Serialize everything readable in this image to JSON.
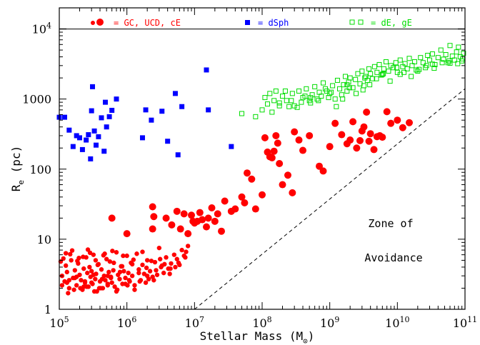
{
  "chart_data": {
    "type": "scatter",
    "x_scale": "log",
    "y_scale": "log",
    "xlim": [
      100000,
      100000000000
    ],
    "ylim": [
      1,
      20000
    ],
    "xlabel_main": "Stellar Mass (M",
    "xlabel_sub": "⊙",
    "xlabel_end": ")",
    "ylabel_main": "R",
    "ylabel_sub": "e",
    "ylabel_end": " (pc)",
    "x_ticks": [
      {
        "value": 100000,
        "base": "10",
        "exp": "5"
      },
      {
        "value": 1000000,
        "base": "10",
        "exp": "6"
      },
      {
        "value": 10000000,
        "base": "10",
        "exp": "7"
      },
      {
        "value": 100000000,
        "base": "10",
        "exp": "8"
      },
      {
        "value": 1000000000,
        "base": "10",
        "exp": "9"
      },
      {
        "value": 10000000000,
        "base": "10",
        "exp": "10"
      },
      {
        "value": 100000000000,
        "base": "10",
        "exp": "11"
      }
    ],
    "y_ticks": [
      {
        "value": 1,
        "label": "1"
      },
      {
        "value": 10,
        "label": "10"
      },
      {
        "value": 100,
        "label": "100"
      },
      {
        "value": 1000,
        "label": "1000"
      },
      {
        "value": 10000,
        "base": "10",
        "exp": "4"
      }
    ],
    "hline": {
      "y": 10000,
      "color": "#555555"
    },
    "avoidance_line": {
      "x": [
        10000000,
        100000000000
      ],
      "y": [
        1,
        1400
      ]
    },
    "annotations": [
      "Zone of",
      "Avoidance"
    ],
    "legend": [
      {
        "label": "= GC, UCD, cE",
        "color": "#ff0000",
        "marker": "circle"
      },
      {
        "label": "= dSph",
        "color": "#0000ff",
        "marker": "square"
      },
      {
        "label": "= dE, gE",
        "color": "#00dd00",
        "marker": "open-square"
      }
    ],
    "series": [
      {
        "name": "GC, UCD, cE",
        "marker": "circle-small",
        "color": "#ff0000",
        "x": [
          110000,
          120000,
          125000,
          130000,
          140000,
          150000,
          160000,
          170000,
          180000,
          190000,
          200000,
          210000,
          220000,
          230000,
          240000,
          250000,
          260000,
          270000,
          280000,
          290000,
          300000,
          310000,
          320000,
          340000,
          350000,
          360000,
          380000,
          400000,
          420000,
          440000,
          460000,
          480000,
          500000,
          520000,
          540000,
          560000,
          580000,
          600000,
          630000,
          660000,
          700000,
          740000,
          780000,
          820000,
          860000,
          900000,
          950000,
          1000000,
          1050000,
          1100000,
          1150000,
          1200000,
          1300000,
          1400000,
          1500000,
          1600000,
          1700000,
          1800000,
          1900000,
          2000000,
          2200000,
          2400000,
          2600000,
          2800000,
          3000000,
          3200000,
          3500000,
          3800000,
          4100000,
          4500000,
          5000000,
          5500000,
          6000000,
          6500000,
          7000000,
          7500000,
          8000000,
          105000,
          115000,
          135000,
          145000,
          165000,
          185000,
          205000,
          225000,
          255000,
          285000,
          330000,
          370000,
          410000,
          450000,
          520000,
          610000,
          720000,
          850000,
          1020000,
          1250000,
          1550000,
          1950000,
          2500000,
          3300000,
          4300000,
          5800000,
          130000,
          170000,
          230000,
          300000,
          390000,
          520000,
          700000,
          950000,
          1300000,
          2100000,
          125000,
          155000,
          195000,
          265000,
          345000,
          470000,
          640000,
          880000,
          1200000,
          1700000,
          2300000,
          3100000,
          4400000,
          110000,
          140000,
          180000,
          240000,
          320000,
          430000,
          580000,
          790000,
          1080000,
          1500000,
          2000000,
          2700000,
          3600000,
          5200000,
          7300000
        ],
        "y": [
          3.0,
          2.5,
          4.2,
          3.4,
          2.0,
          5.0,
          2.8,
          3.6,
          2.2,
          4.5,
          3.1,
          2.6,
          1.9,
          3.8,
          2.4,
          5.5,
          3.3,
          2.1,
          4.0,
          2.9,
          3.5,
          2.3,
          6.0,
          2.7,
          3.2,
          1.8,
          4.4,
          2.5,
          3.7,
          2.0,
          3.0,
          2.6,
          5.2,
          2.2,
          3.4,
          4.8,
          2.9,
          2.4,
          3.6,
          2.1,
          6.5,
          3.1,
          2.7,
          4.1,
          2.3,
          3.5,
          2.8,
          5.8,
          3.3,
          2.5,
          4.6,
          3.0,
          2.2,
          6.2,
          3.7,
          2.6,
          4.3,
          3.2,
          2.4,
          5.0,
          3.5,
          2.9,
          4.7,
          3.1,
          7.5,
          4.0,
          3.3,
          5.5,
          3.8,
          4.5,
          6.0,
          5.2,
          4.3,
          7.0,
          5.8,
          6.6,
          8.0,
          4.8,
          5.3,
          1.7,
          6.1,
          1.9,
          4.9,
          2.0,
          5.6,
          2.1,
          6.4,
          1.8,
          4.3,
          2.0,
          5.9,
          2.3,
          6.8,
          1.9,
          4.1,
          2.2,
          5.1,
          2.5,
          3.9,
          2.6,
          4.2,
          3.2,
          4.6,
          2.4,
          2.8,
          2.1,
          2.4,
          2.0,
          3.0,
          1.8,
          2.3,
          1.9,
          2.7,
          6.3,
          6.9,
          5.4,
          7.1,
          5.0,
          6.2,
          4.6,
          5.8,
          4.4,
          6.6,
          4.9,
          5.2,
          3.8,
          2.2,
          2.6,
          2.9,
          2.5,
          3.1,
          2.7,
          2.8,
          3.4,
          2.6,
          3.3,
          3.0,
          3.6,
          4.4,
          4.0,
          5.5
        ]
      },
      {
        "name": "GC, UCD, cE",
        "marker": "circle-large",
        "color": "#ff0000",
        "x": [
          600000,
          1000000,
          2400000,
          2500000,
          2400000,
          3800000,
          4600000,
          5500000,
          6200000,
          7000000,
          8000000,
          9000000,
          9500000,
          10000000,
          11000000,
          12000000,
          13000000,
          15000000,
          16000000,
          18000000,
          20000000,
          22000000,
          25000000,
          28000000,
          35000000,
          40000000,
          50000000,
          55000000,
          60000000,
          70000000,
          80000000,
          100000000,
          110000000,
          120000000,
          130000000,
          140000000,
          150000000,
          160000000,
          170000000,
          180000000,
          200000000,
          240000000,
          280000000,
          300000000,
          350000000,
          400000000,
          500000000,
          700000000,
          800000000,
          1000000000,
          1200000000,
          1500000000,
          1800000000,
          2000000000,
          2200000000,
          2500000000,
          2800000000,
          3000000000,
          3200000000,
          3500000000,
          3800000000,
          4000000000,
          4500000000,
          5000000000,
          5500000000,
          6000000000,
          7000000000,
          8000000000,
          10000000000,
          12000000000,
          15000000000
        ],
        "y": [
          20,
          12,
          29,
          21,
          14,
          20,
          16,
          25,
          14,
          23,
          12,
          22,
          18,
          17,
          18,
          24,
          19,
          15,
          20,
          28,
          18,
          23,
          13,
          35,
          25,
          27,
          40,
          33,
          88,
          72,
          27,
          43,
          280,
          175,
          150,
          145,
          180,
          300,
          235,
          120,
          60,
          82,
          46,
          340,
          260,
          185,
          300,
          110,
          94,
          210,
          450,
          310,
          230,
          260,
          475,
          200,
          255,
          350,
          400,
          650,
          250,
          320,
          190,
          290,
          300,
          285,
          660,
          450,
          500,
          390,
          460
        ]
      },
      {
        "name": "dSph",
        "marker": "square",
        "color": "#0000ff",
        "x": [
          100000,
          120000,
          140000,
          160000,
          180000,
          200000,
          220000,
          250000,
          270000,
          290000,
          300000,
          310000,
          330000,
          350000,
          380000,
          420000,
          460000,
          480000,
          500000,
          550000,
          600000,
          700000,
          1700000,
          1900000,
          2300000,
          3300000,
          4000000,
          5200000,
          5700000,
          6500000,
          15000000,
          16000000,
          35000000
        ],
        "y": [
          550,
          550,
          360,
          210,
          300,
          280,
          190,
          260,
          310,
          140,
          680,
          1500,
          350,
          220,
          290,
          540,
          180,
          900,
          400,
          560,
          690,
          1000,
          280,
          700,
          500,
          670,
          250,
          1200,
          160,
          780,
          2600,
          700,
          210
        ]
      },
      {
        "name": "dE, gE",
        "marker": "open-square",
        "color": "#00dd00",
        "x": [
          50000000,
          80000000,
          100000000,
          110000000,
          120000000,
          130000000,
          150000000,
          160000000,
          180000000,
          200000000,
          230000000,
          250000000,
          280000000,
          300000000,
          350000000,
          380000000,
          400000000,
          450000000,
          500000000,
          550000000,
          600000000,
          650000000,
          700000000,
          750000000,
          800000000,
          900000000,
          1000000000,
          1100000000,
          1200000000,
          1300000000,
          1400000000,
          1500000000,
          1600000000,
          1700000000,
          1800000000,
          1900000000,
          2000000000,
          2200000000,
          2400000000,
          2600000000,
          2800000000,
          3000000000,
          3200000000,
          3400000000,
          3600000000,
          3800000000,
          4000000000,
          4300000000,
          4600000000,
          5000000000,
          5400000000,
          5800000000,
          6300000000,
          6800000000,
          7400000000,
          8000000000,
          8700000000,
          9500000000,
          10000000000,
          11000000000,
          12000000000,
          13000000000,
          14000000000,
          15000000000,
          16500000000,
          18000000000,
          20000000000,
          22000000000,
          24000000000,
          26000000000,
          28000000000,
          30000000000,
          33000000000,
          36000000000,
          40000000000,
          44000000000,
          48000000000,
          52000000000,
          56000000000,
          60000000000,
          65000000000,
          70000000000,
          75000000000,
          80000000000,
          85000000000,
          90000000000,
          95000000000,
          180000000,
          220000000,
          330000000,
          430000000,
          520000000,
          680000000,
          860000000,
          1050000000,
          1250000000,
          1550000000,
          1950000000,
          2450000000,
          3100000000,
          3900000000,
          4900000000,
          6200000000,
          7800000000,
          9800000000,
          12500000000,
          16000000000,
          21000000000,
          27000000000,
          35000000000,
          46000000000,
          60000000000,
          78000000000,
          140000000,
          270000000,
          520000000,
          960000000,
          1800000000,
          3300000000,
          6000000000,
          11000000000,
          19000000000,
          33000000000,
          58000000000,
          92000000000
        ],
        "y": [
          620,
          560,
          700,
          1050,
          850,
          1200,
          950,
          1300,
          880,
          1100,
          950,
          780,
          1200,
          800,
          1300,
          900,
          1050,
          1400,
          950,
          1150,
          1500,
          1000,
          1250,
          1100,
          1700,
          1300,
          1200,
          1550,
          1000,
          1850,
          1400,
          1150,
          1600,
          2100,
          1300,
          1750,
          2000,
          1450,
          1900,
          2300,
          1650,
          2500,
          1550,
          2100,
          1850,
          2700,
          2300,
          1950,
          2900,
          2400,
          3100,
          2200,
          2700,
          3400,
          2500,
          3000,
          2800,
          3300,
          2400,
          3600,
          2900,
          3200,
          2700,
          3800,
          3000,
          3400,
          2500,
          3900,
          3300,
          2800,
          4200,
          3600,
          4400,
          3100,
          3900,
          5000,
          3700,
          4300,
          3300,
          5800,
          4100,
          3600,
          4700,
          5500,
          4000,
          3500,
          4500,
          800,
          1300,
          760,
          1100,
          880,
          950,
          1400,
          1250,
          780,
          1000,
          1450,
          1200,
          1350,
          1600,
          1950,
          2300,
          1800,
          2800,
          2400,
          2100,
          2650,
          3000,
          2750,
          3300,
          3250,
          3200,
          650,
          950,
          1050,
          1050,
          1600,
          2000,
          2250,
          2250,
          2600,
          3150,
          3500,
          3750
        ]
      }
    ]
  }
}
